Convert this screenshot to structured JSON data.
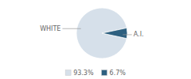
{
  "chart_data": {
    "type": "pie",
    "categories": [
      "WHITE",
      "A.I."
    ],
    "values": [
      93.3,
      6.7
    ],
    "colors": [
      "#d6e0ea",
      "#2e6080"
    ],
    "value_labels": [
      "93.3%",
      "6.7%"
    ],
    "legend": "bottom"
  }
}
